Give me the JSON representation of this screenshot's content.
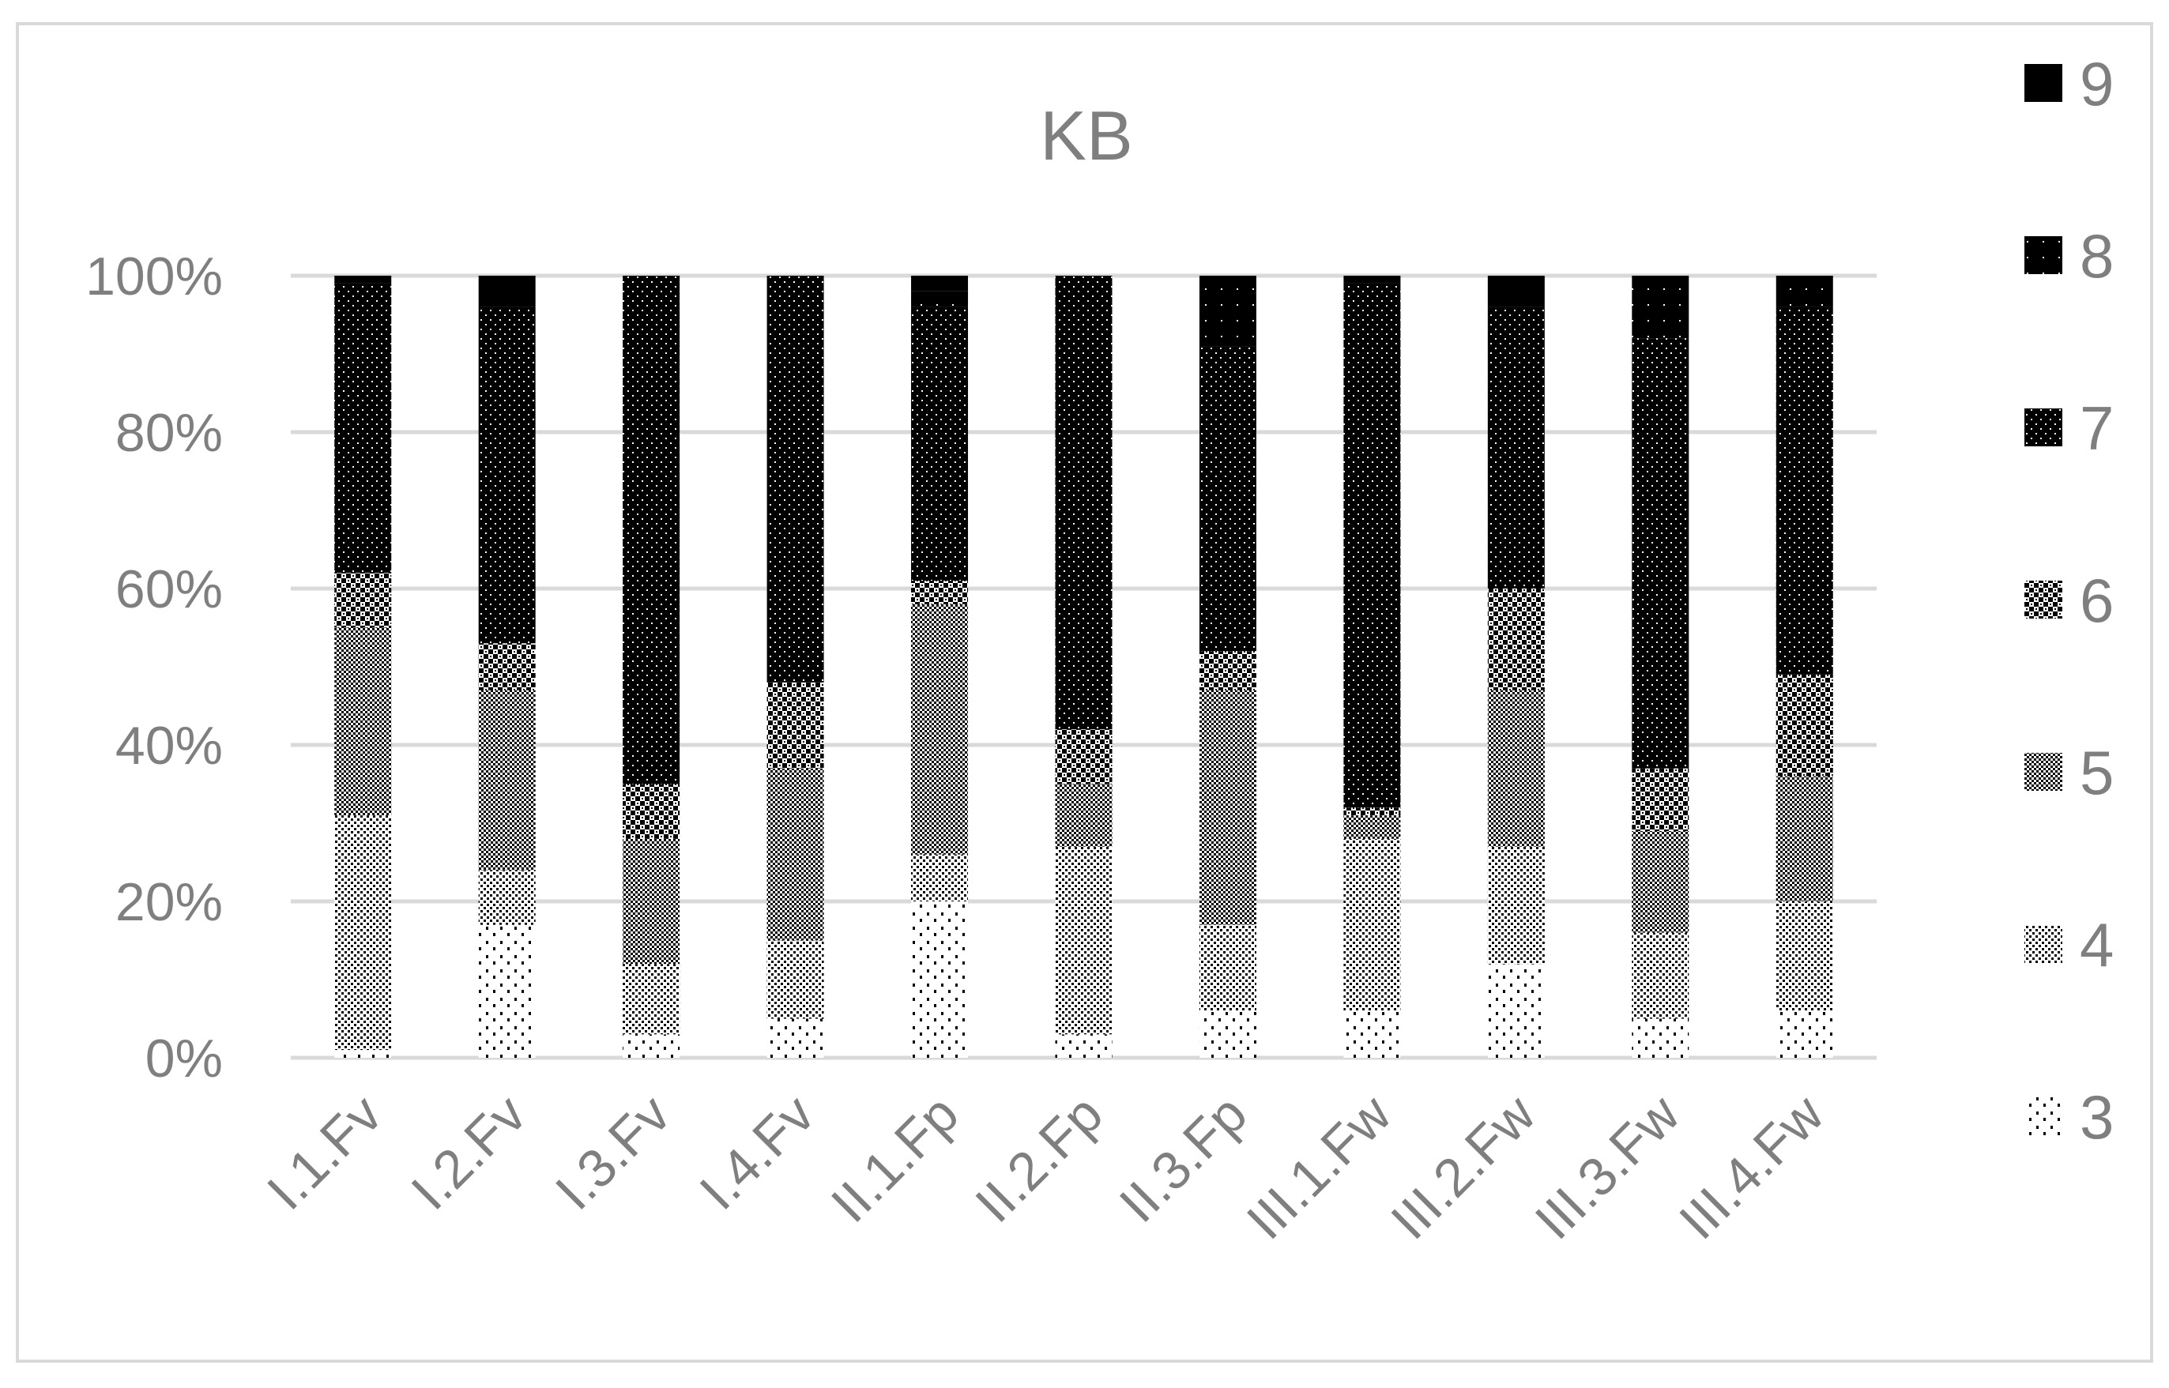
{
  "colors": {
    "background": "#ffffff",
    "frame": "#d9d9d9",
    "gridline": "#d9d9d9",
    "axis_text": "#7f7f7f",
    "ink": "#000000"
  },
  "chart_data": {
    "type": "bar",
    "stacked": true,
    "percent_stacked": true,
    "title": "KB",
    "categories": [
      "I.1.Fv",
      "I.2.Fv",
      "I.3.Fv",
      "I.4.Fv",
      "II.1.Fp",
      "II.2.Fp",
      "II.3.Fp",
      "III.1.Fw",
      "III.2.Fw",
      "III.3.Fw",
      "III.4.Fw"
    ],
    "yticks": [
      "0%",
      "20%",
      "40%",
      "60%",
      "80%",
      "100%"
    ],
    "ylim": [
      0,
      100
    ],
    "grid": true,
    "legend_position": "right",
    "series": [
      {
        "name": "3",
        "pattern": "sparse-dots",
        "values": [
          1,
          17,
          3,
          5,
          20,
          3,
          6,
          6,
          12,
          5,
          6
        ]
      },
      {
        "name": "4",
        "pattern": "fine-dots",
        "values": [
          30,
          7,
          9,
          10,
          6,
          24,
          11,
          22,
          15,
          11,
          14
        ]
      },
      {
        "name": "5",
        "pattern": "checker",
        "values": [
          24,
          23,
          16,
          22,
          32,
          8,
          30,
          3,
          20,
          13,
          16
        ]
      },
      {
        "name": "6",
        "pattern": "coarse-check",
        "values": [
          7,
          6,
          7,
          11,
          3,
          7,
          5,
          1,
          13,
          8,
          13
        ]
      },
      {
        "name": "7",
        "pattern": "dark-dots",
        "values": [
          37,
          43,
          65,
          52,
          35,
          58,
          39,
          67,
          36,
          55,
          47
        ]
      },
      {
        "name": "8",
        "pattern": "dark-sparse",
        "values": [
          1,
          0,
          0,
          0,
          2,
          0,
          9,
          1,
          0,
          8,
          4
        ]
      },
      {
        "name": "9",
        "pattern": "solid",
        "values": [
          0,
          4,
          0,
          0,
          2,
          0,
          0,
          0,
          4,
          0,
          0
        ]
      }
    ]
  }
}
